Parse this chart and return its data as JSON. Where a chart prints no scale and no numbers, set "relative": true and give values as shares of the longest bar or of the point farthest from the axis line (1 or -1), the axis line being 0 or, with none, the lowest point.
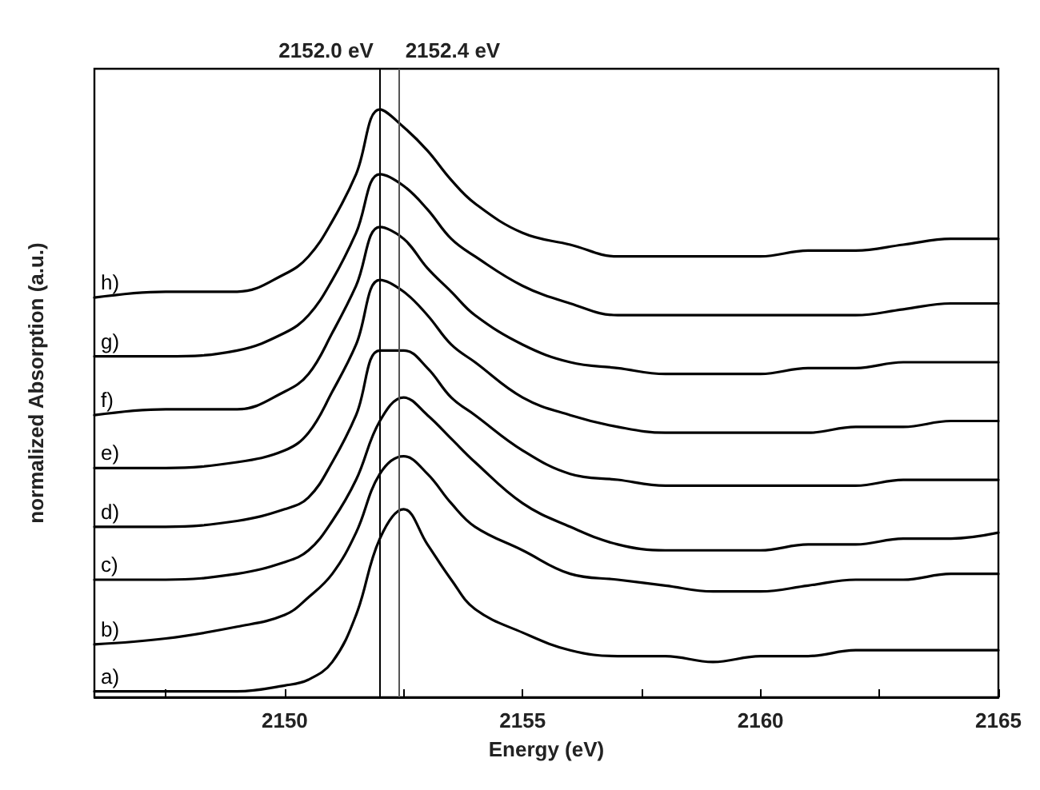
{
  "chart_data": {
    "type": "line",
    "relative": true,
    "xlabel": "Energy (eV)",
    "ylabel": "normalized Absorption (a.u.)",
    "xlim": [
      2146,
      2165
    ],
    "xticks": [
      {
        "value": 2147.5,
        "label": null
      },
      2150,
      {
        "value": 2152.5,
        "label": null
      },
      2155,
      {
        "value": 2157.5,
        "label": null
      },
      2160,
      {
        "value": 2162.5,
        "label": null
      },
      2165
    ],
    "tick_labels": "x",
    "legend": false,
    "marker": "none",
    "line_style": "solid",
    "x": [
      2146,
      2147.5,
      2149,
      2150,
      2150.5,
      2151,
      2151.5,
      2152,
      2152.5,
      2153,
      2153.5,
      2154,
      2155,
      2156,
      2157,
      2158,
      2159,
      2160,
      2161,
      2162,
      2163,
      2164,
      2165
    ],
    "series": [
      {
        "name": "a)",
        "color": "#000000",
        "values": [
          0.01,
          0.01,
          0.01,
          0.02,
          0.03,
          0.06,
          0.14,
          0.27,
          0.32,
          0.26,
          0.2,
          0.15,
          0.11,
          0.08,
          0.07,
          0.07,
          0.06,
          0.07,
          0.07,
          0.08,
          0.08,
          0.08,
          0.08
        ]
      },
      {
        "name": "b)",
        "color": "#000000",
        "values": [
          0.09,
          0.1,
          0.12,
          0.14,
          0.17,
          0.21,
          0.28,
          0.38,
          0.41,
          0.38,
          0.33,
          0.29,
          0.25,
          0.21,
          0.2,
          0.19,
          0.18,
          0.18,
          0.19,
          0.2,
          0.2,
          0.21,
          0.21
        ]
      },
      {
        "name": "c)",
        "color": "#000000",
        "values": [
          0.2,
          0.2,
          0.21,
          0.23,
          0.25,
          0.3,
          0.37,
          0.47,
          0.51,
          0.48,
          0.44,
          0.4,
          0.33,
          0.29,
          0.26,
          0.25,
          0.25,
          0.25,
          0.26,
          0.26,
          0.27,
          0.27,
          0.28
        ]
      },
      {
        "name": "d)",
        "color": "#000000",
        "values": [
          0.29,
          0.29,
          0.3,
          0.32,
          0.34,
          0.4,
          0.48,
          0.59,
          0.59,
          0.56,
          0.51,
          0.48,
          0.42,
          0.38,
          0.37,
          0.36,
          0.36,
          0.36,
          0.36,
          0.36,
          0.37,
          0.37,
          0.37
        ]
      },
      {
        "name": "e)",
        "color": "#000000",
        "values": [
          0.39,
          0.39,
          0.4,
          0.42,
          0.45,
          0.52,
          0.6,
          0.71,
          0.69,
          0.65,
          0.6,
          0.57,
          0.51,
          0.48,
          0.46,
          0.45,
          0.45,
          0.45,
          0.45,
          0.46,
          0.46,
          0.47,
          0.47
        ]
      },
      {
        "name": "f)",
        "color": "#000000",
        "values": [
          0.48,
          0.49,
          0.49,
          0.52,
          0.55,
          0.62,
          0.7,
          0.8,
          0.78,
          0.73,
          0.69,
          0.65,
          0.6,
          0.57,
          0.56,
          0.55,
          0.55,
          0.55,
          0.56,
          0.56,
          0.57,
          0.57,
          0.57
        ]
      },
      {
        "name": "g)",
        "color": "#000000",
        "values": [
          0.58,
          0.58,
          0.59,
          0.62,
          0.65,
          0.71,
          0.79,
          0.89,
          0.87,
          0.83,
          0.78,
          0.75,
          0.7,
          0.67,
          0.65,
          0.65,
          0.65,
          0.65,
          0.65,
          0.65,
          0.66,
          0.67,
          0.67
        ]
      },
      {
        "name": "h)",
        "color": "#000000",
        "values": [
          0.68,
          0.69,
          0.69,
          0.72,
          0.75,
          0.81,
          0.89,
          1.0,
          0.97,
          0.93,
          0.88,
          0.84,
          0.79,
          0.77,
          0.75,
          0.75,
          0.75,
          0.75,
          0.76,
          0.76,
          0.77,
          0.78,
          0.78
        ]
      }
    ],
    "ref_lines": [
      {
        "axis": "x",
        "value": 2152.0,
        "label": "2152.0 eV",
        "color": "#000000"
      },
      {
        "axis": "x",
        "value": 2152.4,
        "label": "2152.4 eV",
        "color": "#555555"
      }
    ]
  }
}
